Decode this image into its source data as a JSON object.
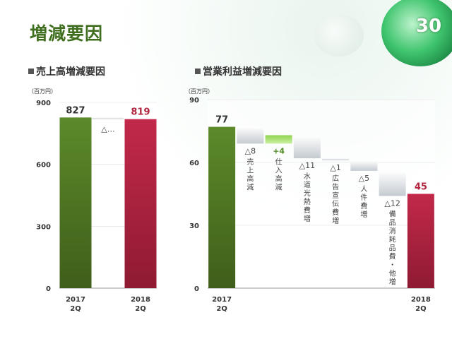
{
  "title": "増減要因",
  "page_number": "30",
  "colors": {
    "title_green": "#3f6e1f",
    "bar_green": "#4e7a22",
    "bar_red": "#b0243f",
    "gray_step": "#b8bfc6",
    "plus_step": "#8fd44f",
    "label_red": "#b0243f",
    "label_green": "#4e8a22"
  },
  "chart_data": [
    {
      "type": "bar",
      "title": "売上高増減要因",
      "unit": "（百万円）",
      "yticks": [
        0,
        300,
        600,
        900
      ],
      "ylim": [
        0,
        900
      ],
      "categories": [
        "2017\n2Q",
        "",
        "2018\n2Q"
      ],
      "bars": [
        {
          "kind": "total",
          "start": 0,
          "end": 827,
          "label": "827",
          "category": "2017\n2Q"
        },
        {
          "kind": "decrease",
          "start": 819,
          "end": 827,
          "label": "△…",
          "category": ""
        },
        {
          "kind": "total",
          "start": 0,
          "end": 819,
          "label": "819",
          "category": "2018\n2Q"
        }
      ]
    },
    {
      "type": "bar",
      "title": "営業利益増減要因",
      "unit": "（百万円）",
      "yticks": [
        0,
        30,
        60,
        90
      ],
      "ylim": [
        0,
        90
      ],
      "categories": [
        "2017\n2Q",
        "",
        "",
        "",
        "",
        "",
        "",
        "2018\n2Q"
      ],
      "bars": [
        {
          "kind": "total",
          "start": 0,
          "end": 77,
          "label": "77",
          "category": "2017\n2Q",
          "note": ""
        },
        {
          "kind": "decrease",
          "start": 69,
          "end": 77,
          "label": "△8",
          "category": "",
          "note": "売上高減"
        },
        {
          "kind": "increase",
          "start": 69,
          "end": 73,
          "label": "+4",
          "category": "",
          "note": "仕入高減"
        },
        {
          "kind": "decrease",
          "start": 62,
          "end": 73,
          "label": "△11",
          "category": "",
          "note": "水道光熱費増"
        },
        {
          "kind": "decrease",
          "start": 61,
          "end": 62,
          "label": "△1",
          "category": "",
          "note": "広告宣伝費増"
        },
        {
          "kind": "decrease",
          "start": 56,
          "end": 61,
          "label": "△5",
          "category": "",
          "note": "人件費増"
        },
        {
          "kind": "decrease",
          "start": 44,
          "end": 56,
          "label": "△12",
          "category": "",
          "note": "備品消耗品費・他増"
        },
        {
          "kind": "total",
          "start": 0,
          "end": 45,
          "label": "45",
          "category": "2018\n2Q",
          "note": ""
        }
      ]
    }
  ]
}
